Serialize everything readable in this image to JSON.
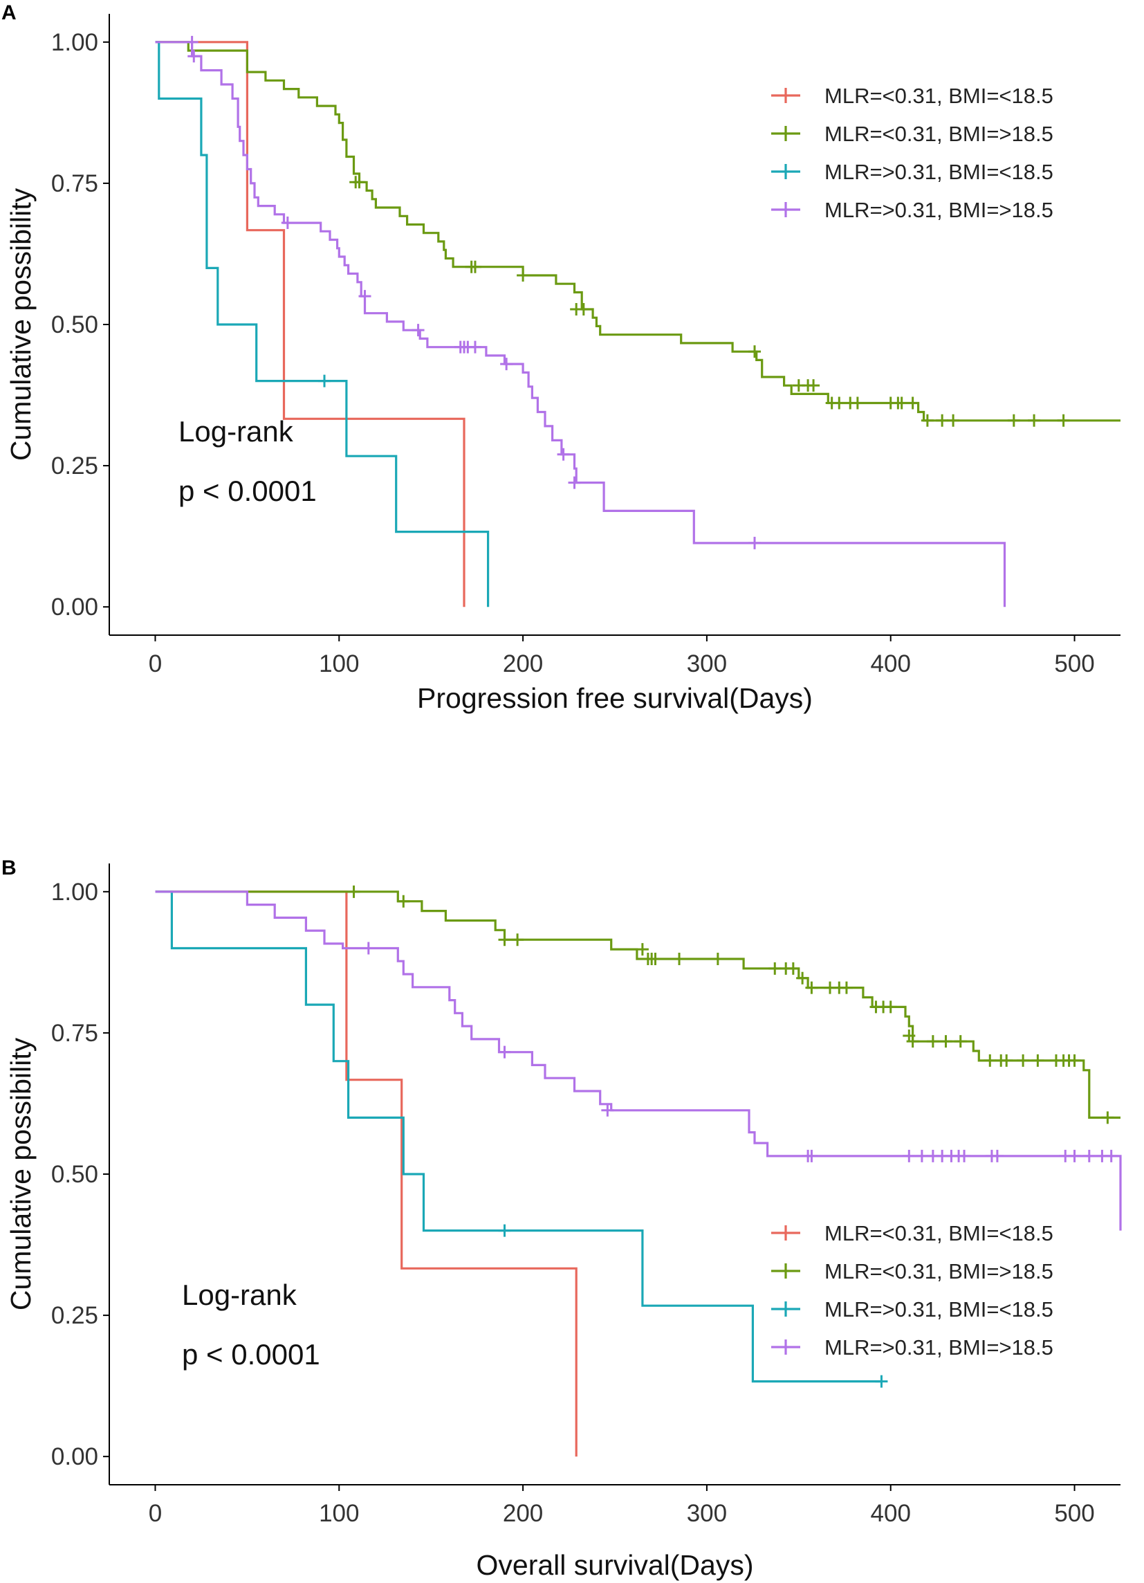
{
  "chart_data": [
    {
      "type": "line",
      "panel": "A",
      "xlabel": "Progression free survival(Days)",
      "ylabel": "Cumulative possibility",
      "xlim": [
        -25,
        525
      ],
      "ylim": [
        -0.05,
        1.05
      ],
      "xticks": [
        "0",
        "100",
        "200",
        "300",
        "400",
        "500"
      ],
      "yticks": [
        "0.00",
        "0.25",
        "0.50",
        "0.75",
        "1.00"
      ],
      "annotation_lines": [
        "Log-rank",
        "p < 0.0001"
      ],
      "legend_position": "top-right",
      "series": [
        {
          "name": "MLR=<0.31, BMI=<18.5",
          "color": "#E8685C",
          "steps": [
            [
              0,
              1.0
            ],
            [
              50,
              0.667
            ],
            [
              70,
              0.333
            ],
            [
              168,
              0.0
            ]
          ],
          "end_x": 168,
          "censors": []
        },
        {
          "name": "MLR=<0.31, BMI=>18.5",
          "color": "#6B9A12",
          "steps": [
            [
              0,
              1.0
            ],
            [
              18,
              0.985
            ],
            [
              50,
              0.947
            ],
            [
              60,
              0.932
            ],
            [
              70,
              0.917
            ],
            [
              78,
              0.902
            ],
            [
              88,
              0.887
            ],
            [
              98,
              0.872
            ],
            [
              100,
              0.857
            ],
            [
              102,
              0.827
            ],
            [
              104,
              0.797
            ],
            [
              108,
              0.767
            ],
            [
              111,
              0.752
            ],
            [
              115,
              0.737
            ],
            [
              118,
              0.722
            ],
            [
              120,
              0.707
            ],
            [
              133,
              0.692
            ],
            [
              137,
              0.677
            ],
            [
              146,
              0.662
            ],
            [
              154,
              0.647
            ],
            [
              157,
              0.632
            ],
            [
              158,
              0.617
            ],
            [
              162,
              0.602
            ],
            [
              200,
              0.587
            ],
            [
              218,
              0.572
            ],
            [
              228,
              0.557
            ],
            [
              232,
              0.527
            ],
            [
              238,
              0.512
            ],
            [
              240,
              0.497
            ],
            [
              242,
              0.482
            ],
            [
              286,
              0.467
            ],
            [
              314,
              0.452
            ],
            [
              327,
              0.437
            ],
            [
              330,
              0.407
            ],
            [
              342,
              0.392
            ],
            [
              346,
              0.377
            ],
            [
              366,
              0.361
            ],
            [
              415,
              0.345
            ],
            [
              418,
              0.33
            ]
          ],
          "end_x": 525,
          "censors": [
            [
              109,
              0.752
            ],
            [
              111,
              0.752
            ],
            [
              172,
              0.602
            ],
            [
              174,
              0.602
            ],
            [
              200,
              0.587
            ],
            [
              229,
              0.527
            ],
            [
              233,
              0.527
            ],
            [
              326,
              0.452
            ],
            [
              350,
              0.392
            ],
            [
              355,
              0.392
            ],
            [
              358,
              0.392
            ],
            [
              368,
              0.361
            ],
            [
              372,
              0.361
            ],
            [
              378,
              0.361
            ],
            [
              382,
              0.361
            ],
            [
              400,
              0.361
            ],
            [
              404,
              0.361
            ],
            [
              406,
              0.361
            ],
            [
              412,
              0.361
            ],
            [
              420,
              0.33
            ],
            [
              428,
              0.33
            ],
            [
              434,
              0.33
            ],
            [
              467,
              0.33
            ],
            [
              478,
              0.33
            ],
            [
              494,
              0.33
            ]
          ]
        },
        {
          "name": "MLR=>0.31, BMI=<18.5",
          "color": "#1BA8B6",
          "steps": [
            [
              0,
              1.0
            ],
            [
              2,
              0.9
            ],
            [
              25,
              0.8
            ],
            [
              28,
              0.6
            ],
            [
              34,
              0.5
            ],
            [
              55,
              0.4
            ],
            [
              104,
              0.267
            ],
            [
              131,
              0.133
            ],
            [
              181,
              0.0
            ]
          ],
          "end_x": 181,
          "censors": [
            [
              92,
              0.4
            ]
          ]
        },
        {
          "name": "MLR=>0.31, BMI=>18.5",
          "color": "#B172E8",
          "steps": [
            [
              0,
              1.0
            ],
            [
              20,
              0.975
            ],
            [
              25,
              0.95
            ],
            [
              36,
              0.925
            ],
            [
              42,
              0.9
            ],
            [
              45,
              0.85
            ],
            [
              46,
              0.825
            ],
            [
              48,
              0.8
            ],
            [
              50,
              0.775
            ],
            [
              52,
              0.75
            ],
            [
              54,
              0.725
            ],
            [
              56,
              0.71
            ],
            [
              65,
              0.695
            ],
            [
              70,
              0.68
            ],
            [
              90,
              0.665
            ],
            [
              95,
              0.65
            ],
            [
              99,
              0.635
            ],
            [
              100,
              0.62
            ],
            [
              103,
              0.605
            ],
            [
              105,
              0.59
            ],
            [
              110,
              0.575
            ],
            [
              112,
              0.55
            ],
            [
              114,
              0.52
            ],
            [
              126,
              0.505
            ],
            [
              135,
              0.49
            ],
            [
              144,
              0.475
            ],
            [
              148,
              0.46
            ],
            [
              180,
              0.445
            ],
            [
              190,
              0.43
            ],
            [
              200,
              0.415
            ],
            [
              203,
              0.39
            ],
            [
              205,
              0.37
            ],
            [
              208,
              0.345
            ],
            [
              212,
              0.32
            ],
            [
              216,
              0.295
            ],
            [
              221,
              0.27
            ],
            [
              228,
              0.245
            ],
            [
              229,
              0.22
            ],
            [
              244,
              0.17
            ],
            [
              293,
              0.113
            ],
            [
              462,
              0.0
            ]
          ],
          "end_x": 462,
          "censors": [
            [
              20,
              1.0
            ],
            [
              21,
              0.975
            ],
            [
              72,
              0.68
            ],
            [
              114,
              0.55
            ],
            [
              143,
              0.49
            ],
            [
              166,
              0.46
            ],
            [
              168,
              0.46
            ],
            [
              170,
              0.46
            ],
            [
              174,
              0.46
            ],
            [
              191,
              0.43
            ],
            [
              222,
              0.27
            ],
            [
              228,
              0.22
            ],
            [
              326,
              0.113
            ]
          ]
        }
      ]
    },
    {
      "type": "line",
      "panel": "B",
      "xlabel": "Overall survival(Days)",
      "ylabel": "Cumulative possibility",
      "xlim": [
        -25,
        525
      ],
      "ylim": [
        -0.05,
        1.05
      ],
      "xticks": [
        "0",
        "100",
        "200",
        "300",
        "400",
        "500"
      ],
      "yticks": [
        "0.00",
        "0.25",
        "0.50",
        "0.75",
        "1.00"
      ],
      "annotation_lines": [
        "Log-rank",
        "p < 0.0001"
      ],
      "legend_position": "bottom-right",
      "series": [
        {
          "name": "MLR=<0.31, BMI=<18.5",
          "color": "#E8685C",
          "steps": [
            [
              0,
              1.0
            ],
            [
              104,
              0.667
            ],
            [
              134,
              0.333
            ],
            [
              229,
              0.0
            ]
          ],
          "end_x": 229,
          "censors": []
        },
        {
          "name": "MLR=<0.31, BMI=>18.5",
          "color": "#6B9A12",
          "steps": [
            [
              0,
              1.0
            ],
            [
              132,
              0.983
            ],
            [
              145,
              0.966
            ],
            [
              158,
              0.949
            ],
            [
              185,
              0.932
            ],
            [
              190,
              0.915
            ],
            [
              248,
              0.898
            ],
            [
              262,
              0.881
            ],
            [
              320,
              0.864
            ],
            [
              350,
              0.847
            ],
            [
              355,
              0.83
            ],
            [
              385,
              0.813
            ],
            [
              390,
              0.796
            ],
            [
              408,
              0.779
            ],
            [
              410,
              0.762
            ],
            [
              412,
              0.745
            ],
            [
              412,
              0.735
            ],
            [
              445,
              0.718
            ],
            [
              448,
              0.701
            ],
            [
              505,
              0.684
            ],
            [
              508,
              0.6
            ]
          ],
          "end_x": 525,
          "censors": [
            [
              108,
              1.0
            ],
            [
              135,
              0.983
            ],
            [
              190,
              0.915
            ],
            [
              197,
              0.915
            ],
            [
              265,
              0.898
            ],
            [
              268,
              0.881
            ],
            [
              270,
              0.881
            ],
            [
              272,
              0.881
            ],
            [
              285,
              0.881
            ],
            [
              306,
              0.881
            ],
            [
              337,
              0.864
            ],
            [
              343,
              0.864
            ],
            [
              347,
              0.864
            ],
            [
              352,
              0.847
            ],
            [
              357,
              0.83
            ],
            [
              367,
              0.83
            ],
            [
              372,
              0.83
            ],
            [
              376,
              0.83
            ],
            [
              392,
              0.796
            ],
            [
              396,
              0.796
            ],
            [
              400,
              0.796
            ],
            [
              410,
              0.745
            ],
            [
              412,
              0.735
            ],
            [
              423,
              0.735
            ],
            [
              430,
              0.735
            ],
            [
              438,
              0.735
            ],
            [
              454,
              0.701
            ],
            [
              460,
              0.701
            ],
            [
              463,
              0.701
            ],
            [
              472,
              0.701
            ],
            [
              480,
              0.701
            ],
            [
              490,
              0.701
            ],
            [
              494,
              0.701
            ],
            [
              497,
              0.701
            ],
            [
              500,
              0.701
            ],
            [
              518,
              0.6
            ]
          ]
        },
        {
          "name": "MLR=>0.31, BMI=<18.5",
          "color": "#1BA8B6",
          "steps": [
            [
              0,
              1.0
            ],
            [
              9,
              0.9
            ],
            [
              82,
              0.8
            ],
            [
              97,
              0.7
            ],
            [
              105,
              0.6
            ],
            [
              135,
              0.5
            ],
            [
              146,
              0.4
            ],
            [
              265,
              0.267
            ],
            [
              325,
              0.133
            ]
          ],
          "end_x": 395,
          "censors": [
            [
              190,
              0.4
            ],
            [
              395,
              0.133
            ]
          ]
        },
        {
          "name": "MLR=>0.31, BMI=>18.5",
          "color": "#B172E8",
          "steps": [
            [
              0,
              1.0
            ],
            [
              50,
              0.977
            ],
            [
              65,
              0.954
            ],
            [
              82,
              0.931
            ],
            [
              92,
              0.908
            ],
            [
              102,
              0.9
            ],
            [
              132,
              0.877
            ],
            [
              135,
              0.854
            ],
            [
              140,
              0.831
            ],
            [
              160,
              0.808
            ],
            [
              163,
              0.785
            ],
            [
              167,
              0.762
            ],
            [
              172,
              0.739
            ],
            [
              187,
              0.716
            ],
            [
              205,
              0.693
            ],
            [
              212,
              0.67
            ],
            [
              228,
              0.647
            ],
            [
              242,
              0.624
            ],
            [
              248,
              0.613
            ],
            [
              323,
              0.574
            ],
            [
              326,
              0.555
            ],
            [
              333,
              0.532
            ],
            [
              525,
              0.4
            ]
          ],
          "end_x": 525,
          "censors": [
            [
              116,
              0.9
            ],
            [
              190,
              0.716
            ],
            [
              246,
              0.613
            ],
            [
              355,
              0.532
            ],
            [
              357,
              0.532
            ],
            [
              410,
              0.532
            ],
            [
              417,
              0.532
            ],
            [
              423,
              0.532
            ],
            [
              428,
              0.532
            ],
            [
              433,
              0.532
            ],
            [
              437,
              0.532
            ],
            [
              440,
              0.532
            ],
            [
              455,
              0.532
            ],
            [
              458,
              0.532
            ],
            [
              495,
              0.532
            ],
            [
              500,
              0.532
            ],
            [
              508,
              0.532
            ],
            [
              515,
              0.532
            ],
            [
              520,
              0.532
            ]
          ]
        }
      ]
    }
  ]
}
